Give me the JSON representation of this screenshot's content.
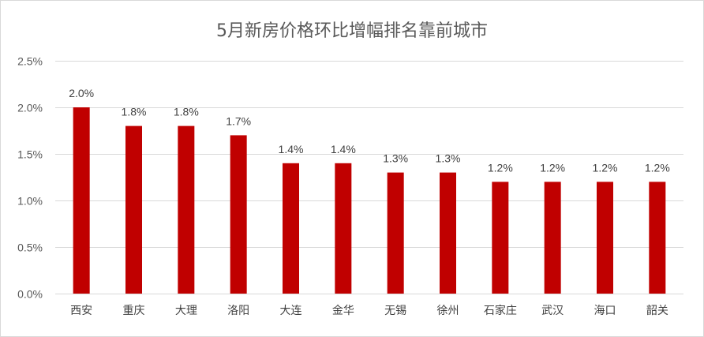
{
  "chart_data": {
    "type": "bar",
    "title": "5月新房价格环比增幅排名靠前城市",
    "xlabel": "",
    "ylabel": "",
    "categories": [
      "西安",
      "重庆",
      "大理",
      "洛阳",
      "大连",
      "金华",
      "无锡",
      "徐州",
      "石家庄",
      "武汉",
      "海口",
      "韶关"
    ],
    "values": [
      2.0,
      1.8,
      1.8,
      1.7,
      1.4,
      1.4,
      1.3,
      1.3,
      1.2,
      1.2,
      1.2,
      1.2
    ],
    "value_labels": [
      "2.0%",
      "1.8%",
      "1.8%",
      "1.7%",
      "1.4%",
      "1.4%",
      "1.3%",
      "1.3%",
      "1.2%",
      "1.2%",
      "1.2%",
      "1.2%"
    ],
    "ylim": [
      0,
      2.5
    ],
    "yticks": [
      0,
      0.5,
      1.0,
      1.5,
      2.0,
      2.5
    ],
    "ytick_labels": [
      "0.0%",
      "0.5%",
      "1.0%",
      "1.5%",
      "2.0%",
      "2.5%"
    ],
    "grid": true,
    "legend": "none",
    "bar_color": "#c00000",
    "grid_color": "#d9d9d9"
  }
}
